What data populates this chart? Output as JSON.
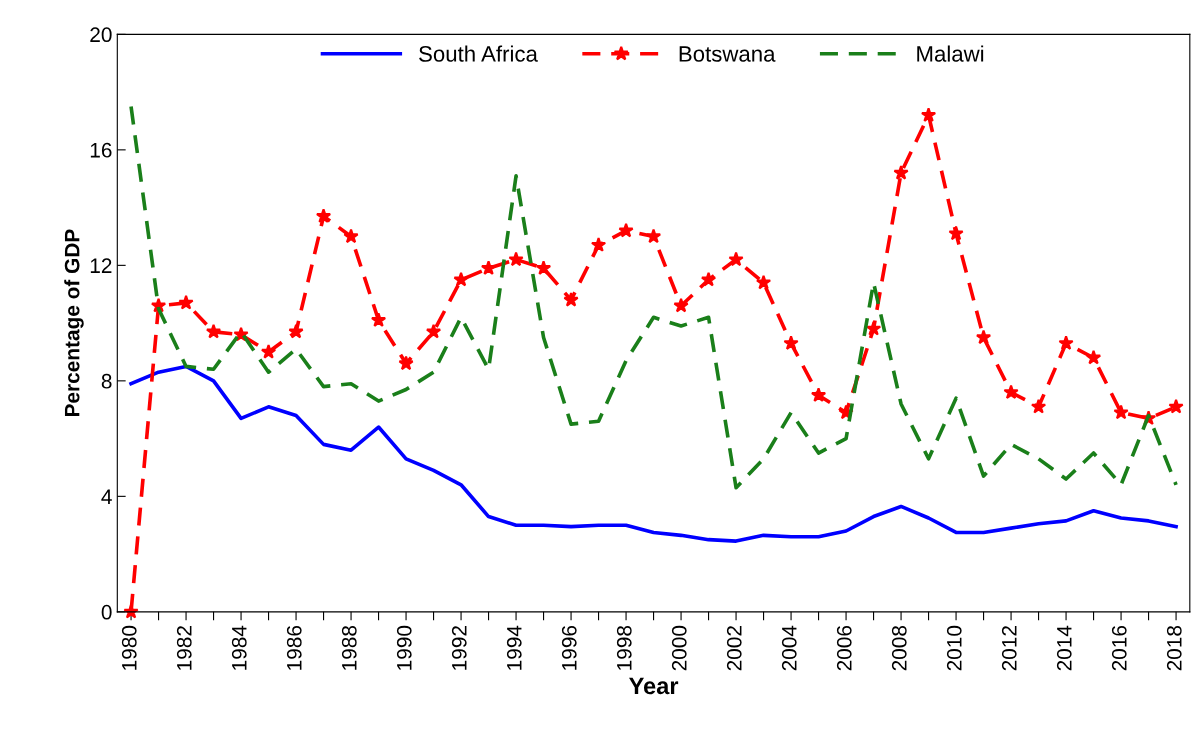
{
  "chart_data": {
    "type": "line",
    "xlabel": "Year",
    "ylabel": "Percentage of GDP",
    "x": [
      1980,
      1981,
      1982,
      1983,
      1984,
      1985,
      1986,
      1987,
      1988,
      1989,
      1990,
      1991,
      1992,
      1993,
      1994,
      1995,
      1996,
      1997,
      1998,
      1999,
      2000,
      2001,
      2002,
      2003,
      2004,
      2005,
      2006,
      2007,
      2008,
      2009,
      2010,
      2011,
      2012,
      2013,
      2014,
      2015,
      2016,
      2017,
      2018
    ],
    "series": [
      {
        "name": "South Africa",
        "color": "#0000ff",
        "line_style": "solid",
        "marker": "none",
        "values": [
          7.9,
          8.3,
          8.5,
          8.0,
          6.7,
          7.1,
          6.8,
          5.8,
          5.6,
          6.4,
          5.3,
          4.9,
          4.4,
          3.3,
          3.0,
          3.0,
          2.95,
          3.0,
          3.0,
          2.75,
          2.65,
          2.5,
          2.45,
          2.65,
          2.6,
          2.6,
          2.8,
          3.3,
          3.65,
          3.25,
          2.75,
          2.75,
          2.9,
          3.05,
          3.15,
          3.5,
          3.25,
          3.15,
          2.95
        ]
      },
      {
        "name": "Botswana",
        "color": "#ff0000",
        "line_style": "dashed",
        "marker": "star",
        "values": [
          0,
          10.6,
          10.7,
          9.7,
          9.6,
          9.0,
          9.7,
          13.7,
          13.0,
          10.1,
          8.6,
          9.7,
          11.5,
          11.9,
          12.2,
          11.9,
          10.8,
          12.7,
          13.2,
          13.0,
          10.6,
          11.5,
          12.2,
          11.4,
          9.3,
          7.5,
          6.9,
          9.8,
          15.2,
          17.2,
          13.1,
          9.5,
          7.6,
          7.1,
          9.3,
          8.8,
          6.9,
          6.7,
          7.1
        ]
      },
      {
        "name": "Malawi",
        "color": "#1a7f1a",
        "line_style": "dashed",
        "marker": "none",
        "values": [
          17.5,
          10.5,
          8.5,
          8.4,
          9.7,
          8.3,
          9.1,
          7.8,
          7.9,
          7.3,
          7.7,
          8.3,
          10.2,
          8.4,
          15.1,
          9.5,
          6.5,
          6.6,
          8.7,
          10.2,
          9.9,
          10.2,
          4.3,
          5.3,
          6.9,
          5.5,
          6.0,
          11.4,
          7.2,
          5.3,
          7.4,
          4.7,
          5.8,
          5.3,
          4.6,
          5.5,
          4.4,
          6.8,
          4.4
        ]
      }
    ],
    "xlim": [
      1979.5,
      2018.5
    ],
    "xticks": [
      1980,
      {
        "value": 1981,
        "label": null
      },
      1982,
      {
        "value": 1983,
        "label": null
      },
      1984,
      {
        "value": 1985,
        "label": null
      },
      1986,
      {
        "value": 1987,
        "label": null
      },
      1988,
      {
        "value": 1989,
        "label": null
      },
      1990,
      {
        "value": 1991,
        "label": null
      },
      1992,
      {
        "value": 1993,
        "label": null
      },
      1994,
      {
        "value": 1995,
        "label": null
      },
      1996,
      {
        "value": 1997,
        "label": null
      },
      1998,
      {
        "value": 1999,
        "label": null
      },
      2000,
      {
        "value": 2001,
        "label": null
      },
      2002,
      {
        "value": 2003,
        "label": null
      },
      2004,
      {
        "value": 2005,
        "label": null
      },
      2006,
      {
        "value": 2007,
        "label": null
      },
      2008,
      {
        "value": 2009,
        "label": null
      },
      2010,
      {
        "value": 2011,
        "label": null
      },
      2012,
      {
        "value": 2013,
        "label": null
      },
      2014,
      {
        "value": 2015,
        "label": null
      },
      2016,
      {
        "value": 2017,
        "label": null
      },
      2018
    ],
    "ylim": [
      0,
      20
    ],
    "yticks": [
      0,
      4,
      8,
      12,
      16,
      20
    ],
    "grid": false,
    "legend": "top"
  }
}
